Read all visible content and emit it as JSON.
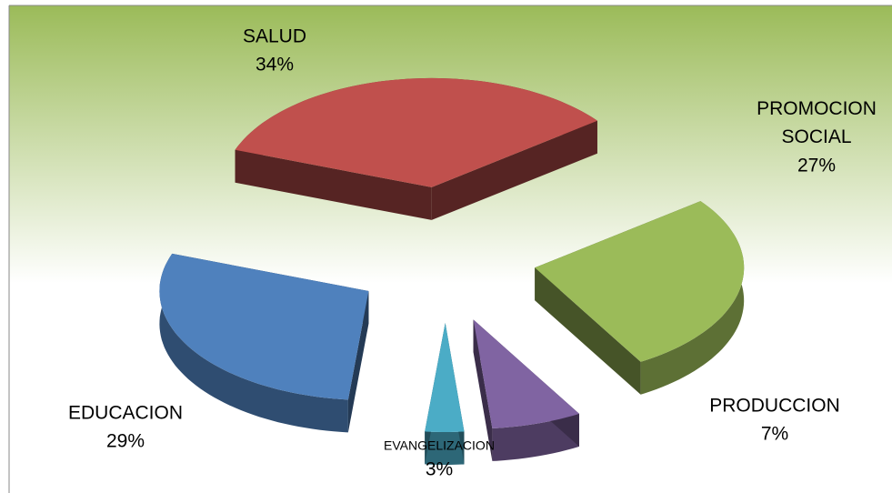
{
  "chart_data": {
    "type": "pie",
    "categories": [
      "SALUD",
      "PROMOCION SOCIAL",
      "PRODUCCION",
      "EVANGELIZACION",
      "EDUCACION"
    ],
    "values": [
      34,
      27,
      7,
      3,
      29
    ],
    "value_labels": [
      "34%",
      "27%",
      "7%",
      "3%",
      "29%"
    ],
    "colors": [
      "#c0504d",
      "#9bbb59",
      "#8064a2",
      "#4bacc6",
      "#4f81bd"
    ]
  }
}
